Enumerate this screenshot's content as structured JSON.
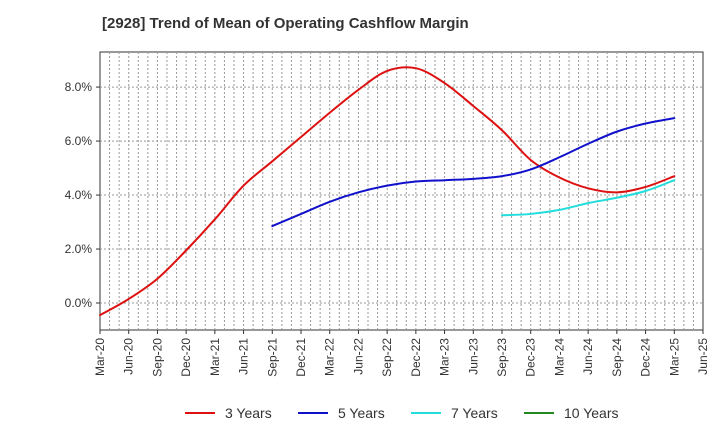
{
  "title": "[2928]  Trend of Mean of Operating Cashflow Margin",
  "colors": {
    "3 Years": "#dd1111",
    "5 Years": "#1111cc",
    "7 Years": "#22dddd",
    "10 Years": "#228822"
  },
  "chart_data": {
    "type": "line",
    "title": "[2928]  Trend of Mean of Operating Cashflow Margin",
    "xlabel": "",
    "ylabel": "",
    "ylim": [
      -1.0,
      9.3
    ],
    "yticks": [
      0.0,
      2.0,
      4.0,
      6.0,
      8.0
    ],
    "ytick_labels": [
      "0.0%",
      "2.0%",
      "4.0%",
      "6.0%",
      "8.0%"
    ],
    "xtick_labels": [
      "Mar-20",
      "Jun-20",
      "Sep-20",
      "Dec-20",
      "Mar-21",
      "Jun-21",
      "Sep-21",
      "Dec-21",
      "Mar-22",
      "Jun-22",
      "Sep-22",
      "Dec-22",
      "Mar-23",
      "Jun-23",
      "Sep-23",
      "Dec-23",
      "Mar-24",
      "Jun-24",
      "Sep-24",
      "Dec-24",
      "Mar-25",
      "Jun-25"
    ],
    "grid": true,
    "legend_position": "bottom",
    "series": [
      {
        "name": "3 Years",
        "x": [
          "Mar-20",
          "Jun-20",
          "Sep-20",
          "Dec-20",
          "Mar-21",
          "Jun-21",
          "Sep-21",
          "Dec-21",
          "Mar-22",
          "Jun-22",
          "Sep-22",
          "Dec-22",
          "Mar-23",
          "Jun-23",
          "Sep-23",
          "Dec-23",
          "Mar-24",
          "Jun-24",
          "Sep-24",
          "Dec-24",
          "Mar-25"
        ],
        "values": [
          -0.45,
          0.15,
          0.9,
          1.95,
          3.1,
          4.35,
          5.25,
          6.15,
          7.05,
          7.9,
          8.6,
          8.7,
          8.15,
          7.3,
          6.4,
          5.3,
          4.65,
          4.25,
          4.1,
          4.3,
          4.7
        ]
      },
      {
        "name": "5 Years",
        "x": [
          "Sep-21",
          "Dec-21",
          "Mar-22",
          "Jun-22",
          "Sep-22",
          "Dec-22",
          "Mar-23",
          "Jun-23",
          "Sep-23",
          "Dec-23",
          "Mar-24",
          "Jun-24",
          "Sep-24",
          "Dec-24",
          "Mar-25"
        ],
        "values": [
          2.85,
          3.3,
          3.75,
          4.1,
          4.35,
          4.5,
          4.55,
          4.6,
          4.7,
          4.95,
          5.4,
          5.9,
          6.35,
          6.65,
          6.85
        ]
      },
      {
        "name": "7 Years",
        "x": [
          "Sep-23",
          "Dec-23",
          "Mar-24",
          "Jun-24",
          "Sep-24",
          "Dec-24",
          "Mar-25"
        ],
        "values": [
          3.25,
          3.3,
          3.45,
          3.7,
          3.9,
          4.15,
          4.55
        ]
      },
      {
        "name": "10 Years",
        "x": [],
        "values": []
      }
    ]
  }
}
